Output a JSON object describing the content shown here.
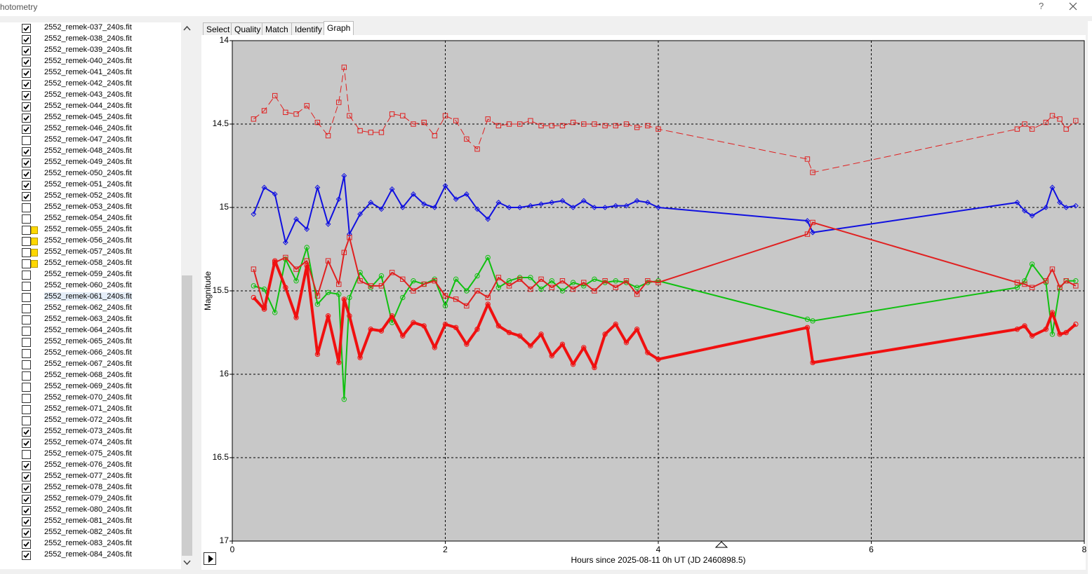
{
  "window": {
    "title": "hotometry",
    "help": "?"
  },
  "tabs": [
    "Select",
    "Quality",
    "Match",
    "Identify",
    "Graph"
  ],
  "active_tab": 4,
  "files": [
    {
      "name": "2552_remek-037_240s.fit",
      "checked": true
    },
    {
      "name": "2552_remek-038_240s.fit",
      "checked": true
    },
    {
      "name": "2552_remek-039_240s.fit",
      "checked": true
    },
    {
      "name": "2552_remek-040_240s.fit",
      "checked": true
    },
    {
      "name": "2552_remek-041_240s.fit",
      "checked": true
    },
    {
      "name": "2552_remek-042_240s.fit",
      "checked": true
    },
    {
      "name": "2552_remek-043_240s.fit",
      "checked": true
    },
    {
      "name": "2552_remek-044_240s.fit",
      "checked": true
    },
    {
      "name": "2552_remek-045_240s.fit",
      "checked": true
    },
    {
      "name": "2552_remek-046_240s.fit",
      "checked": true
    },
    {
      "name": "2552_remek-047_240s.fit",
      "checked": false
    },
    {
      "name": "2552_remek-048_240s.fit",
      "checked": true
    },
    {
      "name": "2552_remek-049_240s.fit",
      "checked": true
    },
    {
      "name": "2552_remek-050_240s.fit",
      "checked": true
    },
    {
      "name": "2552_remek-051_240s.fit",
      "checked": true
    },
    {
      "name": "2552_remek-052_240s.fit",
      "checked": true
    },
    {
      "name": "2552_remek-053_240s.fit",
      "checked": false
    },
    {
      "name": "2552_remek-054_240s.fit",
      "checked": false
    },
    {
      "name": "2552_remek-055_240s.fit",
      "checked": false,
      "flag": true
    },
    {
      "name": "2552_remek-056_240s.fit",
      "checked": false,
      "flag": true
    },
    {
      "name": "2552_remek-057_240s.fit",
      "checked": false,
      "flag": true
    },
    {
      "name": "2552_remek-058_240s.fit",
      "checked": false,
      "flag": true
    },
    {
      "name": "2552_remek-059_240s.fit",
      "checked": false
    },
    {
      "name": "2552_remek-060_240s.fit",
      "checked": false
    },
    {
      "name": "2552_remek-061_240s.fit",
      "checked": false,
      "selected": true
    },
    {
      "name": "2552_remek-062_240s.fit",
      "checked": false
    },
    {
      "name": "2552_remek-063_240s.fit",
      "checked": false
    },
    {
      "name": "2552_remek-064_240s.fit",
      "checked": false
    },
    {
      "name": "2552_remek-065_240s.fit",
      "checked": false
    },
    {
      "name": "2552_remek-066_240s.fit",
      "checked": false
    },
    {
      "name": "2552_remek-067_240s.fit",
      "checked": false
    },
    {
      "name": "2552_remek-068_240s.fit",
      "checked": false
    },
    {
      "name": "2552_remek-069_240s.fit",
      "checked": false
    },
    {
      "name": "2552_remek-070_240s.fit",
      "checked": false
    },
    {
      "name": "2552_remek-071_240s.fit",
      "checked": false
    },
    {
      "name": "2552_remek-072_240s.fit",
      "checked": false
    },
    {
      "name": "2552_remek-073_240s.fit",
      "checked": true
    },
    {
      "name": "2552_remek-074_240s.fit",
      "checked": true
    },
    {
      "name": "2552_remek-075_240s.fit",
      "checked": false
    },
    {
      "name": "2552_remek-076_240s.fit",
      "checked": true
    },
    {
      "name": "2552_remek-077_240s.fit",
      "checked": true
    },
    {
      "name": "2552_remek-078_240s.fit",
      "checked": true
    },
    {
      "name": "2552_remek-079_240s.fit",
      "checked": true
    },
    {
      "name": "2552_remek-080_240s.fit",
      "checked": true
    },
    {
      "name": "2552_remek-081_240s.fit",
      "checked": true
    },
    {
      "name": "2552_remek-082_240s.fit",
      "checked": true
    },
    {
      "name": "2552_remek-083_240s.fit",
      "checked": true
    },
    {
      "name": "2552_remek-084_240s.fit",
      "checked": true
    }
  ],
  "chart_data": {
    "type": "line",
    "x_label": "Hours since 2025-08-11 0h UT (JD 2460898.5)",
    "y_label": "Magnitude",
    "xlim": [
      0,
      8
    ],
    "xticks": [
      0,
      2,
      4,
      6,
      8
    ],
    "ylim": [
      14,
      17
    ],
    "yticks": [
      14,
      14.5,
      15,
      15.5,
      16,
      16.5,
      17
    ],
    "y_inverted": true,
    "grid": true,
    "x": [
      0.2,
      0.3,
      0.4,
      0.5,
      0.6,
      0.7,
      0.8,
      0.9,
      1.0,
      1.05,
      1.1,
      1.2,
      1.3,
      1.4,
      1.5,
      1.6,
      1.7,
      1.8,
      1.9,
      2.0,
      2.1,
      2.2,
      2.3,
      2.4,
      2.5,
      2.6,
      2.7,
      2.8,
      2.9,
      3.0,
      3.1,
      3.2,
      3.3,
      3.4,
      3.5,
      3.6,
      3.7,
      3.8,
      3.9,
      4.0,
      5.4,
      5.45,
      7.37,
      7.44,
      7.51,
      7.64,
      7.7,
      7.77,
      7.83,
      7.92
    ],
    "series": [
      {
        "color": "#e02020",
        "width": 1,
        "dashed": true,
        "marker": "square",
        "values": [
          14.47,
          14.42,
          14.33,
          14.43,
          14.44,
          14.39,
          14.49,
          14.57,
          14.37,
          14.16,
          14.45,
          14.54,
          14.55,
          14.55,
          14.44,
          14.45,
          14.5,
          14.49,
          14.57,
          14.45,
          14.48,
          14.59,
          14.65,
          14.47,
          14.51,
          14.5,
          14.5,
          14.48,
          14.51,
          14.51,
          14.51,
          14.49,
          14.5,
          14.5,
          14.51,
          14.51,
          14.5,
          14.52,
          14.51,
          14.53,
          14.71,
          14.79,
          14.53,
          14.5,
          14.53,
          14.49,
          14.45,
          14.47,
          14.53,
          14.48
        ]
      },
      {
        "color": "#1010e0",
        "width": 2,
        "dashed": false,
        "marker": "diamond",
        "values": [
          15.04,
          14.88,
          14.92,
          15.21,
          15.07,
          15.13,
          14.88,
          15.1,
          14.95,
          14.81,
          15.16,
          15.04,
          14.97,
          15.01,
          14.89,
          15.0,
          14.92,
          14.98,
          15.0,
          14.87,
          14.95,
          14.92,
          15.01,
          15.07,
          14.97,
          15.0,
          15.0,
          14.99,
          14.98,
          14.97,
          14.96,
          15.0,
          14.96,
          15.0,
          15.0,
          14.99,
          14.99,
          14.96,
          14.97,
          15.0,
          15.08,
          15.15,
          14.97,
          15.02,
          15.05,
          15.0,
          14.88,
          14.97,
          15.0,
          14.99
        ]
      },
      {
        "color": "#10c010",
        "width": 2,
        "dashed": false,
        "marker": "circle",
        "values": [
          15.47,
          15.49,
          15.63,
          15.31,
          15.44,
          15.24,
          15.58,
          15.51,
          15.52,
          16.15,
          15.54,
          15.39,
          15.48,
          15.41,
          15.69,
          15.54,
          15.44,
          15.46,
          15.43,
          15.59,
          15.43,
          15.5,
          15.41,
          15.3,
          15.48,
          15.44,
          15.42,
          15.42,
          15.49,
          15.44,
          15.5,
          15.45,
          15.47,
          15.43,
          15.45,
          15.44,
          15.45,
          15.48,
          15.45,
          15.44,
          15.67,
          15.68,
          15.48,
          15.44,
          15.34,
          15.45,
          15.76,
          15.48,
          15.44,
          15.44
        ]
      },
      {
        "color": "#e02020",
        "width": 2,
        "dashed": false,
        "marker": "square",
        "values": [
          15.37,
          15.6,
          15.33,
          15.3,
          15.37,
          15.32,
          15.53,
          15.32,
          15.46,
          15.27,
          15.18,
          15.44,
          15.47,
          15.47,
          15.39,
          15.43,
          15.5,
          15.46,
          15.44,
          15.53,
          15.55,
          15.59,
          15.5,
          15.54,
          15.42,
          15.47,
          15.43,
          15.49,
          15.43,
          15.48,
          15.44,
          15.49,
          15.45,
          15.5,
          15.44,
          15.48,
          15.44,
          15.52,
          15.44,
          15.45,
          15.16,
          15.09,
          15.45,
          15.46,
          15.48,
          15.44,
          15.37,
          15.48,
          15.44,
          15.47
        ]
      },
      {
        "color": "#f01010",
        "width": 4,
        "dashed": false,
        "marker": "circle",
        "values": [
          15.54,
          15.61,
          15.32,
          15.48,
          15.66,
          15.35,
          15.88,
          15.65,
          15.93,
          15.55,
          15.65,
          15.9,
          15.73,
          15.74,
          15.65,
          15.77,
          15.69,
          15.71,
          15.84,
          15.7,
          15.72,
          15.82,
          15.73,
          15.58,
          15.71,
          15.75,
          15.77,
          15.83,
          15.76,
          15.89,
          15.82,
          15.94,
          15.84,
          15.96,
          15.76,
          15.7,
          15.81,
          15.73,
          15.87,
          15.91,
          15.72,
          15.93,
          15.73,
          15.71,
          15.77,
          15.73,
          15.63,
          15.76,
          15.75,
          15.7
        ]
      }
    ]
  }
}
